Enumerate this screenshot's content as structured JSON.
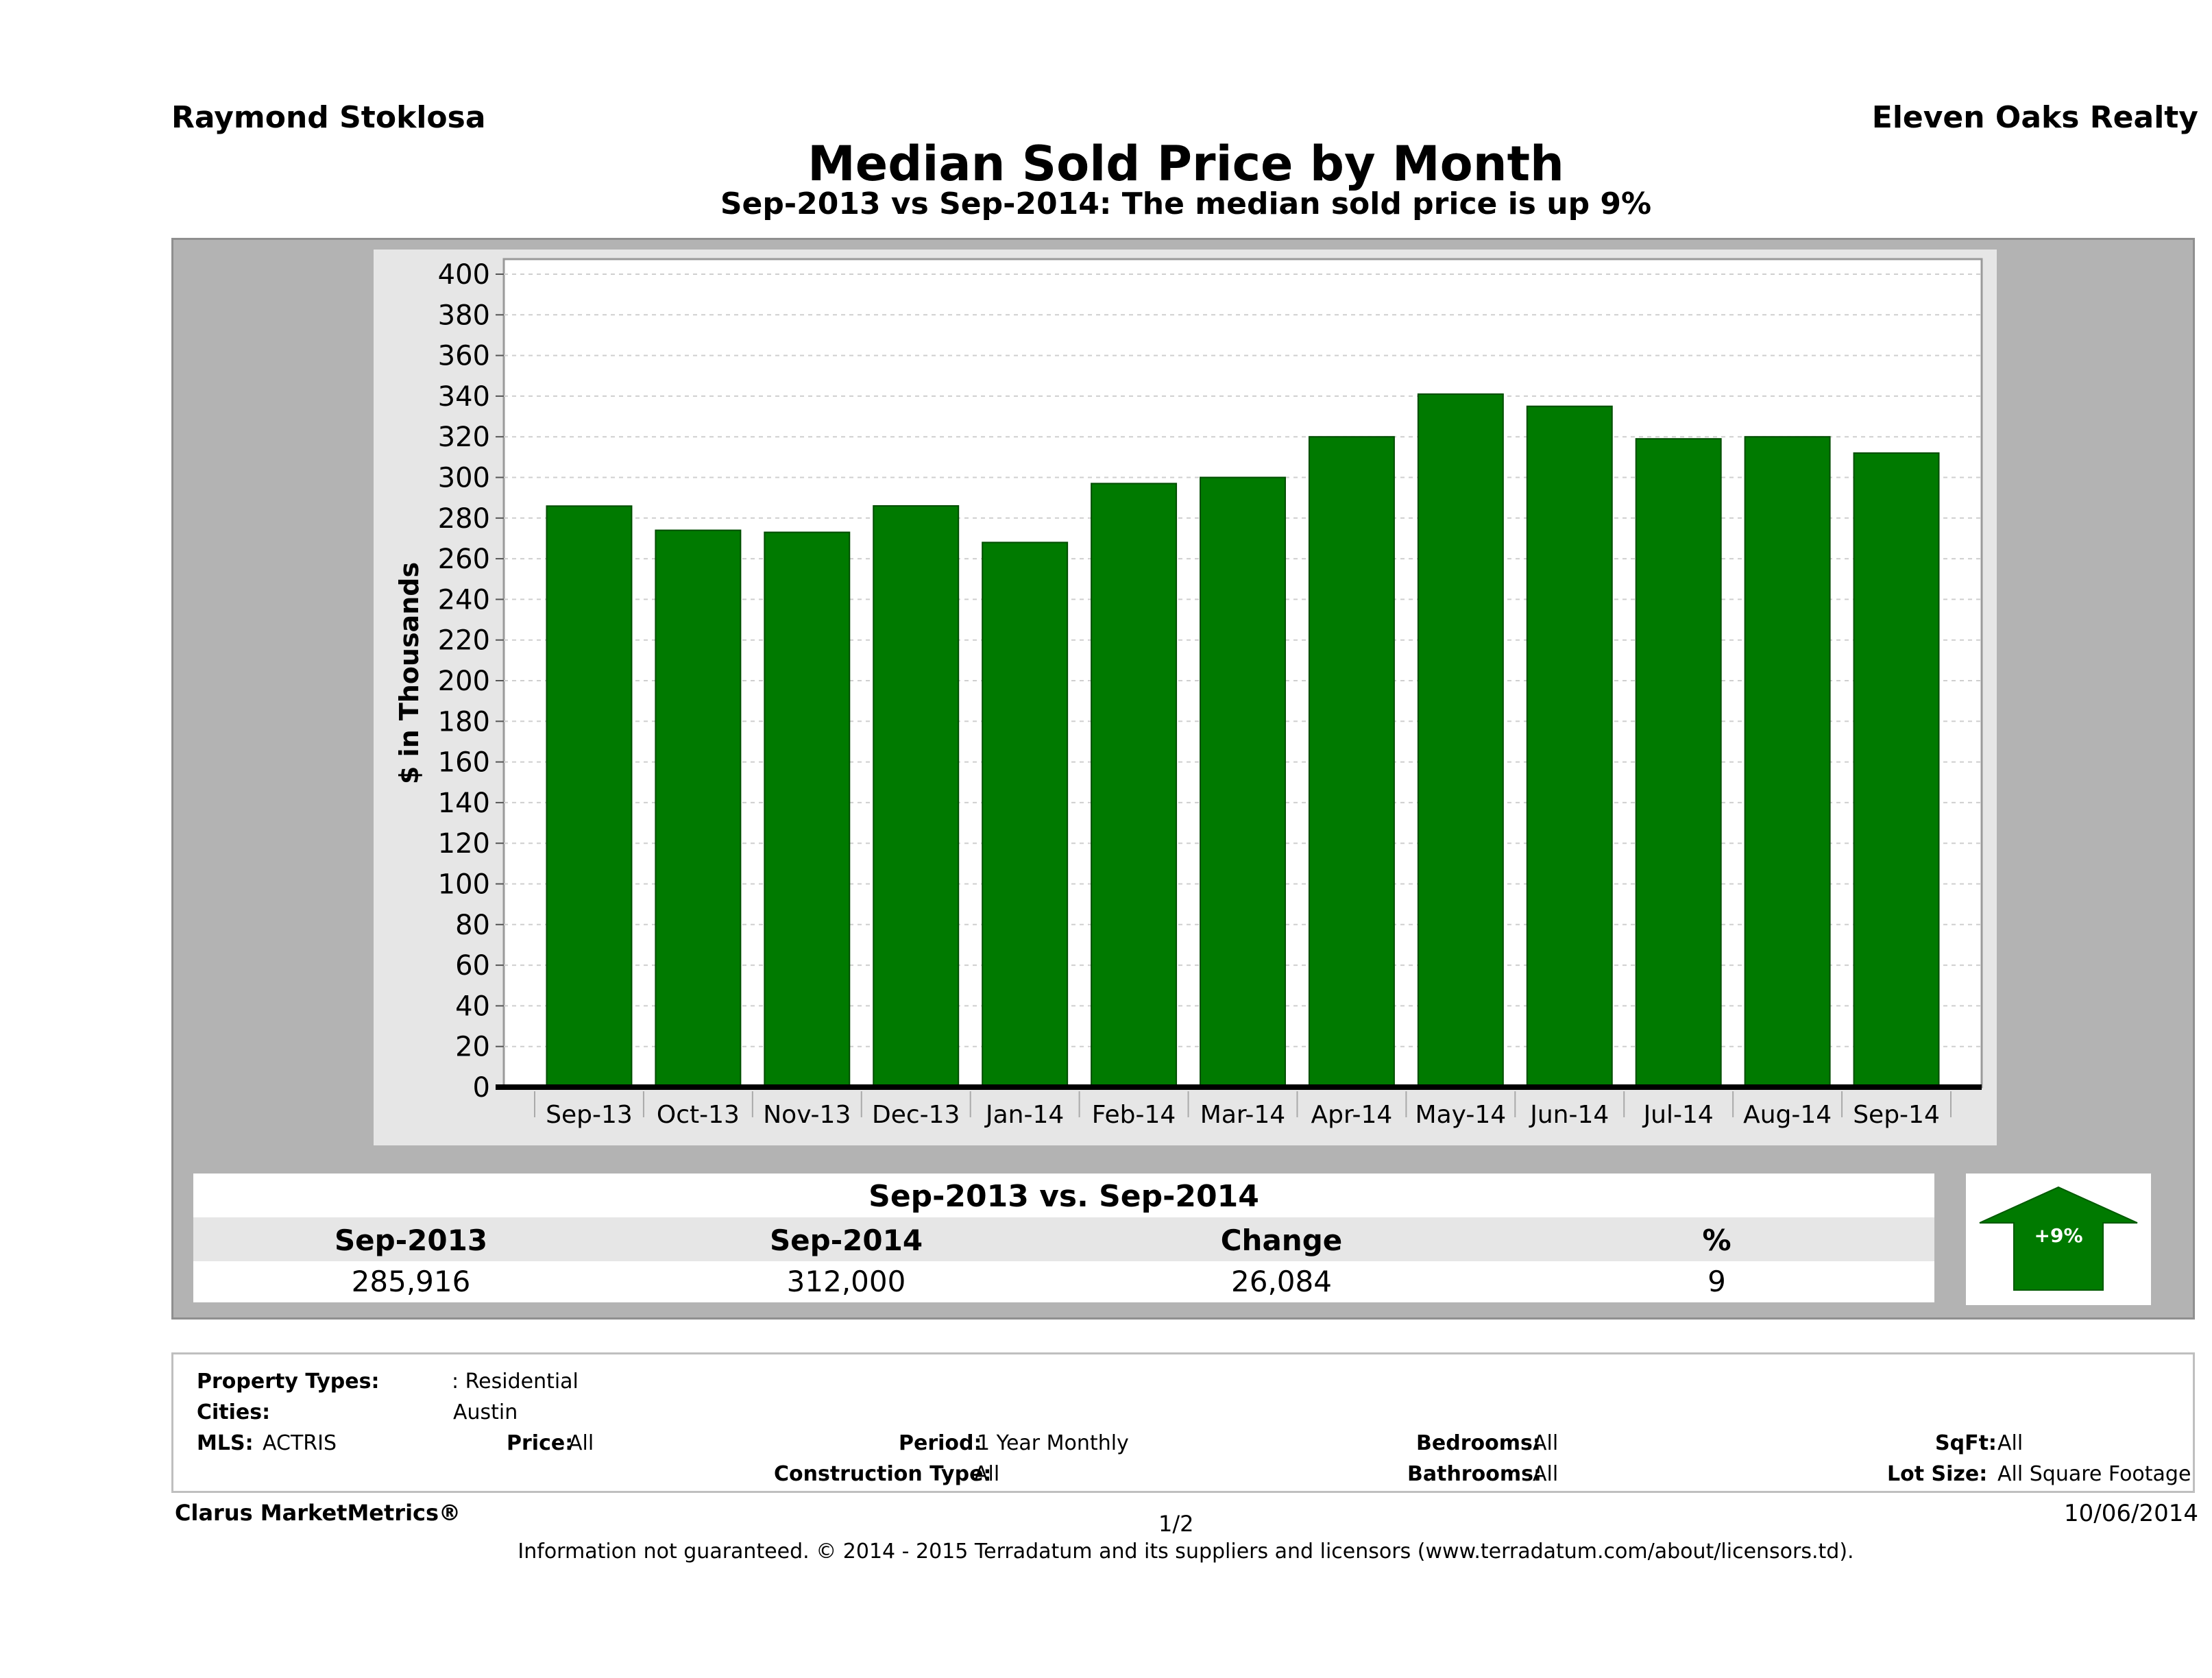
{
  "header": {
    "agent": "Raymond Stoklosa",
    "company": "Eleven Oaks Realty",
    "title": "Median Sold Price by Month",
    "subtitle": "Sep-2013 vs Sep-2014: The median sold price is up 9%"
  },
  "chart_data": {
    "type": "bar",
    "title": "Median Sold Price by Month",
    "ylabel": "$ in Thousands",
    "xlabel": "",
    "ylim": [
      0,
      400
    ],
    "ytick_step": 20,
    "grid": true,
    "bar_color": "#007a00",
    "categories": [
      "Sep-13",
      "Oct-13",
      "Nov-13",
      "Dec-13",
      "Jan-14",
      "Feb-14",
      "Mar-14",
      "Apr-14",
      "May-14",
      "Jun-14",
      "Jul-14",
      "Aug-14",
      "Sep-14"
    ],
    "values": [
      285.916,
      274,
      273,
      286,
      268,
      297,
      300,
      320,
      341,
      335,
      319,
      320,
      312
    ]
  },
  "comparison": {
    "heading": "Sep-2013 vs. Sep-2014",
    "columns": [
      "Sep-2013",
      "Sep-2014",
      "Change",
      "%"
    ],
    "values": [
      "285,916",
      "312,000",
      "26,084",
      "9"
    ],
    "badge": "+9%",
    "badge_color": "#007a00"
  },
  "details": {
    "property_types_label": "Property Types:",
    "property_types_value": ": Residential",
    "cities_label": "Cities:",
    "cities_value": "Austin",
    "mls_label": "MLS:",
    "mls_value": "ACTRIS",
    "price_label": "Price:",
    "price_value": "All",
    "period_label": "Period:",
    "period_value": "1 Year Monthly",
    "construction_label": "Construction Type:",
    "construction_value": "All",
    "bedrooms_label": "Bedrooms:",
    "bedrooms_value": "All",
    "bathrooms_label": "Bathrooms:",
    "bathrooms_value": "All",
    "sqft_label": "SqFt:",
    "sqft_value": "All",
    "lotsize_label": "Lot Size:",
    "lotsize_value": "All Square Footage"
  },
  "footer": {
    "brand": "Clarus MarketMetrics®",
    "page": "1/2",
    "date": "10/06/2014",
    "disclaimer": "Information not guaranteed. © 2014 - 2015 Terradatum and its suppliers and licensors (www.terradatum.com/about/licensors.td)."
  }
}
